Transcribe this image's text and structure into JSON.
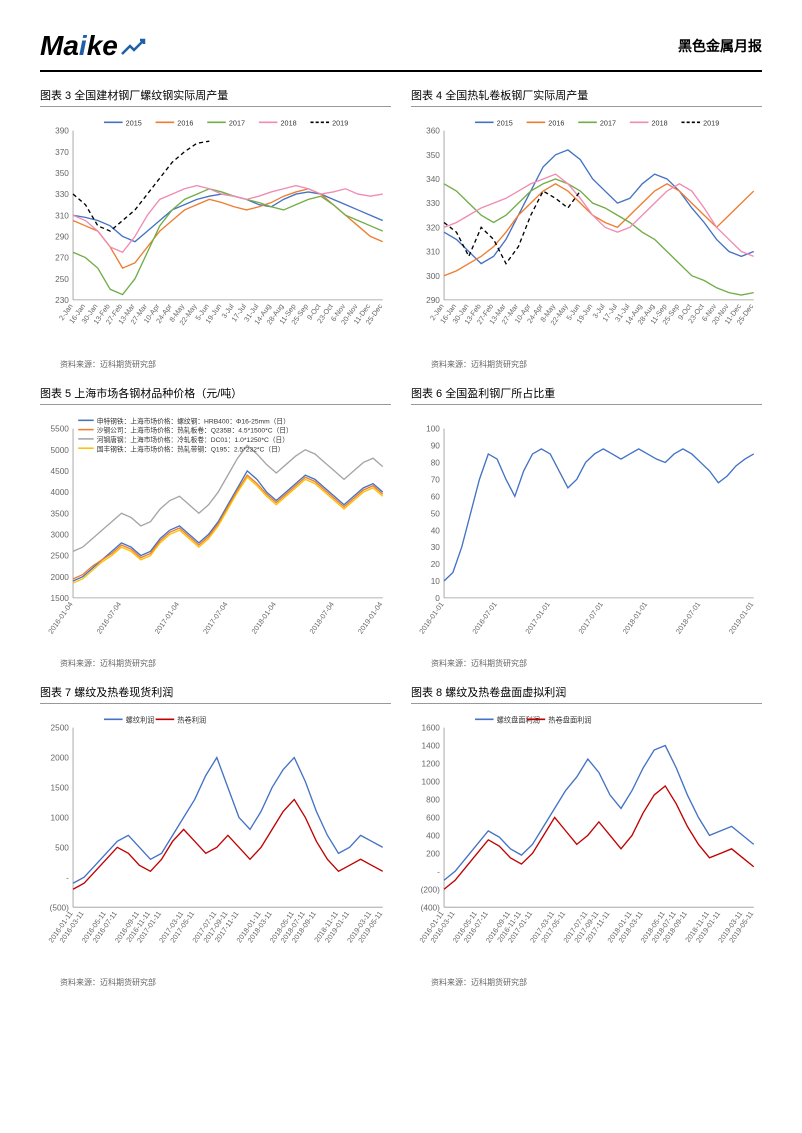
{
  "header": {
    "logo_text_1": "Ma",
    "logo_text_2": "i",
    "logo_text_3": "ke",
    "report_title": "黑色金属月报"
  },
  "source_text": "资料来源：迈科期货研究部",
  "chart3": {
    "title": "图表 3 全国建材钢厂螺纹钢实际周产量",
    "type": "line",
    "ylim": [
      230,
      390
    ],
    "ytick_step": 20,
    "xlabels": [
      "2-Jan",
      "16-Jan",
      "30-Jan",
      "13-Feb",
      "27-Feb",
      "13-Mar",
      "27-Mar",
      "10-Apr",
      "24-Apr",
      "8-May",
      "22-May",
      "5-Jun",
      "19-Jun",
      "3-Jul",
      "17-Jul",
      "31-Jul",
      "14-Aug",
      "28-Aug",
      "11-Sep",
      "25-Sep",
      "9-Oct",
      "23-Oct",
      "6-Nov",
      "20-Nov",
      "11-Dec",
      "25-Dec"
    ],
    "colors": {
      "2015": "#4472c4",
      "2016": "#ed7d31",
      "2017": "#70ad47",
      "2018": "#f08bb4",
      "2019": "#000000"
    },
    "legend": [
      "2015",
      "2016",
      "2017",
      "2018",
      "2019"
    ],
    "series": {
      "2015": [
        310,
        308,
        305,
        300,
        290,
        285,
        295,
        305,
        315,
        320,
        325,
        328,
        330,
        328,
        325,
        320,
        318,
        325,
        330,
        332,
        330,
        325,
        320,
        315,
        310,
        305
      ],
      "2016": [
        305,
        300,
        295,
        280,
        260,
        265,
        280,
        295,
        305,
        315,
        320,
        325,
        322,
        318,
        315,
        318,
        322,
        328,
        332,
        335,
        330,
        320,
        310,
        300,
        290,
        285
      ],
      "2017": [
        275,
        270,
        260,
        240,
        235,
        250,
        275,
        300,
        315,
        325,
        330,
        335,
        332,
        328,
        325,
        322,
        318,
        315,
        320,
        325,
        328,
        320,
        310,
        305,
        300,
        295
      ],
      "2018": [
        310,
        305,
        295,
        280,
        275,
        290,
        310,
        325,
        330,
        335,
        338,
        335,
        330,
        328,
        325,
        328,
        332,
        335,
        338,
        335,
        330,
        332,
        335,
        330,
        328,
        330
      ],
      "2019": [
        330,
        320,
        300,
        295,
        305,
        315,
        330,
        345,
        360,
        370,
        378,
        380,
        null,
        null,
        null,
        null,
        null,
        null,
        null,
        null,
        null,
        null,
        null,
        null,
        null,
        null
      ]
    },
    "dashed": "2019"
  },
  "chart4": {
    "title": "图表 4 全国热轧卷板钢厂实际周产量",
    "type": "line",
    "ylim": [
      290,
      360
    ],
    "ytick_step": 10,
    "xlabels": [
      "2-Jan",
      "16-Jan",
      "30-Jan",
      "13-Feb",
      "27-Feb",
      "13-Mar",
      "27-Mar",
      "10-Apr",
      "24-Apr",
      "8-May",
      "22-May",
      "5-Jun",
      "19-Jun",
      "3-Jul",
      "17-Jul",
      "31-Jul",
      "14-Aug",
      "28-Aug",
      "11-Sep",
      "25-Sep",
      "9-Oct",
      "23-Oct",
      "6-Nov",
      "20-Nov",
      "11-Dec",
      "25-Dec"
    ],
    "colors": {
      "2015": "#4472c4",
      "2016": "#ed7d31",
      "2017": "#70ad47",
      "2018": "#f08bb4",
      "2019": "#000000"
    },
    "legend": [
      "2015",
      "2016",
      "2017",
      "2018",
      "2019"
    ],
    "series": {
      "2015": [
        318,
        315,
        310,
        305,
        308,
        315,
        325,
        335,
        345,
        350,
        352,
        348,
        340,
        335,
        330,
        332,
        338,
        342,
        340,
        335,
        328,
        322,
        315,
        310,
        308,
        310
      ],
      "2016": [
        300,
        302,
        305,
        308,
        312,
        318,
        325,
        330,
        335,
        338,
        335,
        330,
        325,
        322,
        320,
        325,
        330,
        335,
        338,
        335,
        330,
        325,
        320,
        325,
        330,
        335
      ],
      "2017": [
        338,
        335,
        330,
        325,
        322,
        325,
        330,
        335,
        338,
        340,
        338,
        335,
        330,
        328,
        325,
        322,
        318,
        315,
        310,
        305,
        300,
        298,
        295,
        293,
        292,
        293
      ],
      "2018": [
        320,
        322,
        325,
        328,
        330,
        332,
        335,
        338,
        340,
        342,
        338,
        332,
        325,
        320,
        318,
        320,
        325,
        330,
        335,
        338,
        335,
        328,
        320,
        315,
        310,
        308
      ],
      "2019": [
        322,
        318,
        308,
        320,
        315,
        305,
        312,
        325,
        335,
        332,
        328,
        335,
        null,
        null,
        null,
        null,
        null,
        null,
        null,
        null,
        null,
        null,
        null,
        null,
        null,
        null
      ]
    },
    "dashed": "2019"
  },
  "chart5": {
    "title": "图表 5 上海市场各钢材品种价格（元/吨）",
    "type": "line",
    "ylim": [
      1500,
      5500
    ],
    "ytick_step": 500,
    "xlabels": [
      "2016-01-04",
      "2016-07-04",
      "2017-01-04",
      "2017-07-04",
      "2018-01-04",
      "2018-07-04",
      "2019-01-04"
    ],
    "colors": {
      "s1": "#4472c4",
      "s2": "#ed7d31",
      "s3": "#a5a5a5",
      "s4": "#ffc000"
    },
    "legend_labels": {
      "s1": "申特钢铁：上海市场价格：螺纹钢：HRB400：Φ16-25mm（日）",
      "s2": "沙钢公司：上海市场价格：热轧板卷：Q235B：4.5*1500*C（日）",
      "s3": "河钢唐钢：上海市场价格：冷轧板卷：DC01：1.0*1250*C（日）",
      "s4": "国丰钢铁：上海市场价格：热轧带钢：Q195：2.5*232*C（日）"
    },
    "series": {
      "s1": [
        1900,
        2000,
        2200,
        2400,
        2600,
        2800,
        2700,
        2500,
        2600,
        2900,
        3100,
        3200,
        3000,
        2800,
        3000,
        3300,
        3700,
        4100,
        4500,
        4300,
        4000,
        3800,
        4000,
        4200,
        4400,
        4300,
        4100,
        3900,
        3700,
        3900,
        4100,
        4200,
        4000
      ],
      "s2": [
        1950,
        2050,
        2250,
        2400,
        2550,
        2750,
        2650,
        2450,
        2550,
        2850,
        3050,
        3150,
        2950,
        2750,
        2950,
        3250,
        3650,
        4050,
        4400,
        4200,
        3950,
        3750,
        3950,
        4150,
        4350,
        4250,
        4050,
        3850,
        3650,
        3850,
        4050,
        4150,
        3950
      ],
      "s3": [
        2600,
        2700,
        2900,
        3100,
        3300,
        3500,
        3400,
        3200,
        3300,
        3600,
        3800,
        3900,
        3700,
        3500,
        3700,
        4000,
        4400,
        4800,
        5100,
        4900,
        4650,
        4450,
        4650,
        4850,
        5000,
        4900,
        4700,
        4500,
        4300,
        4500,
        4700,
        4800,
        4600
      ],
      "s4": [
        1850,
        1950,
        2150,
        2350,
        2500,
        2700,
        2600,
        2400,
        2500,
        2800,
        3000,
        3100,
        2900,
        2700,
        2900,
        3200,
        3600,
        4000,
        4350,
        4150,
        3900,
        3700,
        3900,
        4100,
        4300,
        4200,
        4000,
        3800,
        3600,
        3800,
        4000,
        4100,
        3900
      ]
    }
  },
  "chart6": {
    "title": "图表 6  全国盈利钢厂所占比重",
    "type": "line",
    "ylim": [
      0,
      100
    ],
    "ytick_step": 10,
    "xlabels": [
      "2016-01-01",
      "2016-07-01",
      "2017-01-01",
      "2017-07-01",
      "2018-01-01",
      "2018-07-01",
      "2019-01-01"
    ],
    "colors": {
      "s1": "#4472c4"
    },
    "series": {
      "s1": [
        10,
        15,
        30,
        50,
        70,
        85,
        82,
        70,
        60,
        75,
        85,
        88,
        85,
        75,
        65,
        70,
        80,
        85,
        88,
        85,
        82,
        85,
        88,
        85,
        82,
        80,
        85,
        88,
        85,
        80,
        75,
        68,
        72,
        78,
        82,
        85
      ]
    }
  },
  "chart7": {
    "title": "图表 7 螺纹及热卷现货利润",
    "type": "line",
    "ylim": [
      -500,
      2500
    ],
    "ytick_step": 500,
    "yzero_paren": true,
    "xlabels": [
      "2016-01-11",
      "2016-03-11",
      "2016-05-11",
      "2016-07-11",
      "2016-09-11",
      "2016-11-11",
      "2017-01-11",
      "2017-03-11",
      "2017-05-11",
      "2017-07-11",
      "2017-09-11",
      "2017-11-11",
      "2018-01-11",
      "2018-03-11",
      "2018-05-11",
      "2018-07-11",
      "2018-09-11",
      "2018-11-11",
      "2019-01-11",
      "2019-03-11",
      "2019-05-11"
    ],
    "colors": {
      "螺纹利润": "#4472c4",
      "热卷利润": "#c00000"
    },
    "legend": [
      "螺纹利润",
      "热卷利润"
    ],
    "series": {
      "螺纹利润": [
        -100,
        0,
        200,
        400,
        600,
        700,
        500,
        300,
        400,
        700,
        1000,
        1300,
        1700,
        2000,
        1500,
        1000,
        800,
        1100,
        1500,
        1800,
        2000,
        1600,
        1100,
        700,
        400,
        500,
        700,
        600,
        500
      ],
      "热卷利润": [
        -200,
        -100,
        100,
        300,
        500,
        400,
        200,
        100,
        300,
        600,
        800,
        600,
        400,
        500,
        700,
        500,
        300,
        500,
        800,
        1100,
        1300,
        1000,
        600,
        300,
        100,
        200,
        300,
        200,
        100
      ]
    }
  },
  "chart8": {
    "title": "图表 8   螺纹及热卷盘面虚拟利润",
    "type": "line",
    "ylim": [
      -400,
      1600
    ],
    "ytick_step": 200,
    "yzero_paren": true,
    "xlabels": [
      "2016-01-11",
      "2016-03-11",
      "2016-05-11",
      "2016-07-11",
      "2016-09-11",
      "2016-11-11",
      "2017-01-11",
      "2017-03-11",
      "2017-05-11",
      "2017-07-11",
      "2017-09-11",
      "2017-11-11",
      "2018-01-11",
      "2018-03-11",
      "2018-05-11",
      "2018-07-11",
      "2018-09-11",
      "2018-11-11",
      "2019-01-11",
      "2019-03-11",
      "2019-05-11"
    ],
    "colors": {
      "螺纹盘面利润": "#4472c4",
      "热卷盘面利润": "#c00000"
    },
    "legend": [
      "螺纹盘面利润",
      "热卷盘面利润"
    ],
    "series": {
      "螺纹盘面利润": [
        -100,
        0,
        150,
        300,
        450,
        380,
        250,
        180,
        300,
        500,
        700,
        900,
        1050,
        1250,
        1100,
        850,
        700,
        900,
        1150,
        1350,
        1400,
        1150,
        850,
        600,
        400,
        450,
        500,
        400,
        300
      ],
      "热卷盘面利润": [
        -200,
        -100,
        50,
        200,
        350,
        280,
        150,
        80,
        200,
        400,
        600,
        450,
        300,
        400,
        550,
        400,
        250,
        400,
        650,
        850,
        950,
        750,
        500,
        300,
        150,
        200,
        250,
        150,
        50
      ]
    }
  }
}
